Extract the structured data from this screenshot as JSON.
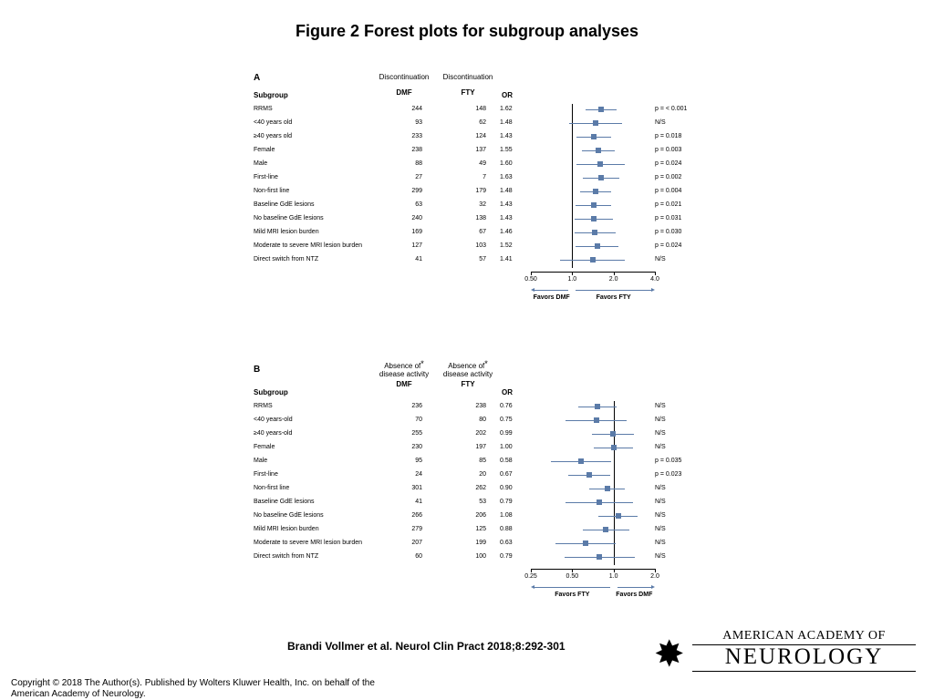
{
  "title": "Figure 2 Forest plots for subgroup analyses",
  "citation": "Brandi Vollmer et al. Neurol Clin Pract 2018;8:292-301",
  "copyright": "Copyright © 2018 The Author(s). Published by Wolters Kluwer Health, Inc. on behalf of the\n American Academy of Neurology.",
  "logo": {
    "line1": "AMERICAN ACADEMY OF",
    "line2": "NEUROLOGY"
  },
  "colors": {
    "point": "#5b7ba8",
    "ci": "#5b7ba8",
    "arrow": "#5b7ba8",
    "text": "#000000",
    "bg": "#ffffff"
  },
  "panelA": {
    "label": "A",
    "col1_top": "Discontinuation",
    "col1_bot": "DMF",
    "col2_top": "Discontinuation",
    "col2_bot": "FTY",
    "or": "OR",
    "subgroup_header": "Subgroup",
    "scale": {
      "min": 0.5,
      "max": 4.0,
      "ticks": [
        0.5,
        1.0,
        2.0,
        4.0
      ],
      "ref": 1.0,
      "log": true
    },
    "favors_left": "Favors DMF",
    "favors_right": "Favors FTY",
    "rows": [
      {
        "name": "RRMS",
        "v1": 244,
        "v2": 148,
        "or": 1.62,
        "lo": 1.25,
        "hi": 2.1,
        "p": "p = < 0.001"
      },
      {
        "name": "<40 years old",
        "v1": 93,
        "v2": 62,
        "or": 1.48,
        "lo": 0.95,
        "hi": 2.3,
        "p": "N/S"
      },
      {
        "name": "≥40 years old",
        "v1": 233,
        "v2": 124,
        "or": 1.43,
        "lo": 1.07,
        "hi": 1.92,
        "p": "p = 0.018"
      },
      {
        "name": "Female",
        "v1": 238,
        "v2": 137,
        "or": 1.55,
        "lo": 1.17,
        "hi": 2.05,
        "p": "p = 0.003"
      },
      {
        "name": "Male",
        "v1": 88,
        "v2": 49,
        "or": 1.6,
        "lo": 1.07,
        "hi": 2.4,
        "p": "p = 0.024"
      },
      {
        "name": "First-line",
        "v1": 27,
        "v2": 7,
        "or": 1.63,
        "lo": 1.2,
        "hi": 2.22,
        "p": "p = 0.002"
      },
      {
        "name": "Non-first line",
        "v1": 299,
        "v2": 179,
        "or": 1.48,
        "lo": 1.14,
        "hi": 1.93,
        "p": "p = 0.004"
      },
      {
        "name": "Baseline GdE lesions",
        "v1": 63,
        "v2": 32,
        "or": 1.43,
        "lo": 1.06,
        "hi": 1.93,
        "p": "p = 0.021"
      },
      {
        "name": "No baseline GdE lesions",
        "v1": 240,
        "v2": 138,
        "or": 1.43,
        "lo": 1.04,
        "hi": 1.97,
        "p": "p = 0.031"
      },
      {
        "name": "Mild MRI lesion burden",
        "v1": 169,
        "v2": 67,
        "or": 1.46,
        "lo": 1.04,
        "hi": 2.06,
        "p": "p = 0.030"
      },
      {
        "name": "Moderate to severe MRI lesion burden",
        "v1": 127,
        "v2": 103,
        "or": 1.52,
        "lo": 1.06,
        "hi": 2.18,
        "p": "p = 0.024"
      },
      {
        "name": "Direct switch from NTZ",
        "v1": 41,
        "v2": 57,
        "or": 1.41,
        "lo": 0.82,
        "hi": 2.43,
        "p": "N/S"
      }
    ]
  },
  "panelB": {
    "label": "B",
    "col1_top": "Absence of",
    "col1_top2": "disease activity",
    "col1_bot": "DMF",
    "col2_top": "Absence of",
    "col2_top2": "disease activity",
    "col2_bot": "FTY",
    "or": "OR",
    "subgroup_header": "Subgroup",
    "scale": {
      "min": 0.25,
      "max": 2.0,
      "ticks": [
        0.25,
        0.5,
        1.0,
        2.0
      ],
      "ref": 1.0,
      "log": true
    },
    "favors_left": "Favors FTY",
    "favors_right": "Favors DMF",
    "rows": [
      {
        "name": "RRMS",
        "v1": 236,
        "v2": 238,
        "or": 0.76,
        "lo": 0.55,
        "hi": 1.05,
        "p": "N/S"
      },
      {
        "name": "<40 years-old",
        "v1": 70,
        "v2": 80,
        "or": 0.75,
        "lo": 0.45,
        "hi": 1.25,
        "p": "N/S"
      },
      {
        "name": "≥40 years-old",
        "v1": 255,
        "v2": 202,
        "or": 0.99,
        "lo": 0.7,
        "hi": 1.4,
        "p": "N/S"
      },
      {
        "name": "Female",
        "v1": 230,
        "v2": 197,
        "or": 1.0,
        "lo": 0.72,
        "hi": 1.39,
        "p": "N/S"
      },
      {
        "name": "Male",
        "v1": 95,
        "v2": 85,
        "or": 0.58,
        "lo": 0.35,
        "hi": 0.96,
        "p": "p = 0.035"
      },
      {
        "name": "First-line",
        "v1": 24,
        "v2": 20,
        "or": 0.67,
        "lo": 0.47,
        "hi": 0.95,
        "p": "p = 0.023"
      },
      {
        "name": "Non-first line",
        "v1": 301,
        "v2": 262,
        "or": 0.9,
        "lo": 0.67,
        "hi": 1.21,
        "p": "N/S"
      },
      {
        "name": "Baseline GdE lesions",
        "v1": 41,
        "v2": 53,
        "or": 0.79,
        "lo": 0.45,
        "hi": 1.38,
        "p": "N/S"
      },
      {
        "name": "No baseline GdE lesions",
        "v1": 266,
        "v2": 206,
        "or": 1.08,
        "lo": 0.78,
        "hi": 1.5,
        "p": "N/S"
      },
      {
        "name": "Mild MRI lesion burden",
        "v1": 279,
        "v2": 125,
        "or": 0.88,
        "lo": 0.6,
        "hi": 1.3,
        "p": "N/S"
      },
      {
        "name": "Moderate to severe MRI lesion burden",
        "v1": 207,
        "v2": 199,
        "or": 0.63,
        "lo": 0.38,
        "hi": 1.04,
        "p": "N/S"
      },
      {
        "name": "Direct switch from NTZ",
        "v1": 60,
        "v2": 100,
        "or": 0.79,
        "lo": 0.44,
        "hi": 1.42,
        "p": "N/S"
      }
    ]
  }
}
